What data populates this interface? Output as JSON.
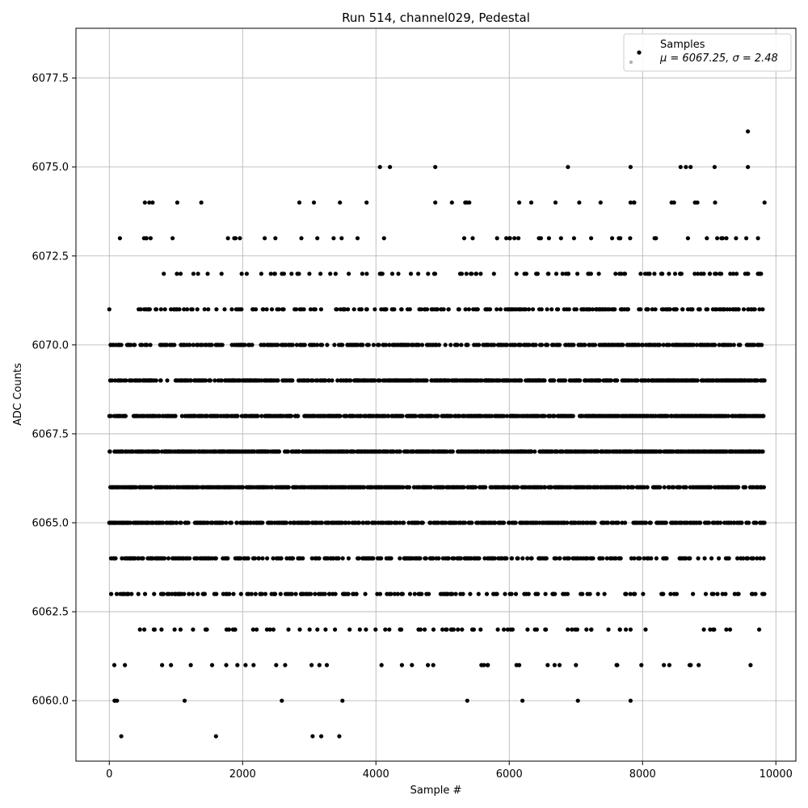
{
  "chart_data": {
    "type": "scatter",
    "title": "Run 514, channel029, Pedestal",
    "xlabel": "Sample #",
    "ylabel": "ADC Counts",
    "xlim": [
      -500,
      10300
    ],
    "ylim": [
      6058.3,
      6078.9
    ],
    "xticks": [
      0,
      2000,
      4000,
      6000,
      8000,
      10000
    ],
    "xtick_labels": [
      "0",
      "2000",
      "4000",
      "6000",
      "8000",
      "10000"
    ],
    "yticks": [
      6060.0,
      6062.5,
      6065.0,
      6067.5,
      6070.0,
      6072.5,
      6075.0,
      6077.5
    ],
    "ytick_labels": [
      "6060.0",
      "6062.5",
      "6065.0",
      "6067.5",
      "6070.0",
      "6072.5",
      "6075.0",
      "6077.5"
    ],
    "grid": true,
    "marker_color": "#000000",
    "legend": {
      "position": "top-right",
      "label": "Samples",
      "stats": "μ = 6067.25, σ = 2.48"
    },
    "series": [
      {
        "name": "Samples",
        "distribution": {
          "x_range": [
            0,
            9830
          ],
          "n_points": 9831,
          "mean": 6067.25,
          "std": 2.48
        },
        "points": [
          [
            0,
            6071
          ],
          [
            80,
            6060
          ],
          [
            180,
            6059
          ],
          [
            600,
            6074
          ],
          [
            650,
            6074
          ],
          [
            620,
            6073
          ],
          [
            950,
            6073
          ],
          [
            1380,
            6074
          ],
          [
            1600,
            6059
          ],
          [
            1960,
            6073
          ],
          [
            3050,
            6059
          ],
          [
            3180,
            6059
          ],
          [
            3450,
            6059
          ],
          [
            3860,
            6074
          ],
          [
            4060,
            6075
          ],
          [
            4210,
            6075
          ],
          [
            4890,
            6075
          ],
          [
            5140,
            6074
          ],
          [
            5340,
            6074
          ],
          [
            5400,
            6074
          ],
          [
            6150,
            6074
          ],
          [
            6330,
            6074
          ],
          [
            6880,
            6075
          ],
          [
            7030,
            6060
          ],
          [
            7370,
            6074
          ],
          [
            7820,
            6075
          ],
          [
            7820,
            6074
          ],
          [
            8570,
            6075
          ],
          [
            8650,
            6075
          ],
          [
            8720,
            6075
          ],
          [
            9080,
            6075
          ],
          [
            9580,
            6076
          ],
          [
            9580,
            6075
          ],
          [
            9830,
            6074
          ],
          [
            8310,
            6063
          ],
          [
            9200,
            6063
          ],
          [
            8920,
            6062
          ],
          [
            7820,
            6062
          ],
          [
            9750,
            6062
          ],
          [
            9650,
            6063
          ],
          [
            7740,
            6063
          ],
          [
            7620,
            6061
          ],
          [
            6680,
            6061
          ],
          [
            7000,
            6061
          ],
          [
            6550,
            6062
          ],
          [
            7020,
            6062
          ],
          [
            7230,
            6062
          ],
          [
            7660,
            6062
          ],
          [
            7360,
            6064
          ],
          [
            4140,
            6062
          ],
          [
            4380,
            6062
          ],
          [
            4640,
            6062
          ],
          [
            5050,
            6062
          ],
          [
            5570,
            6062
          ],
          [
            5920,
            6062
          ],
          [
            6050,
            6062
          ],
          [
            4780,
            6061
          ],
          [
            4860,
            6061
          ],
          [
            5620,
            6061
          ],
          [
            5680,
            6061
          ],
          [
            6110,
            6061
          ],
          [
            6150,
            6061
          ]
        ]
      }
    ]
  }
}
